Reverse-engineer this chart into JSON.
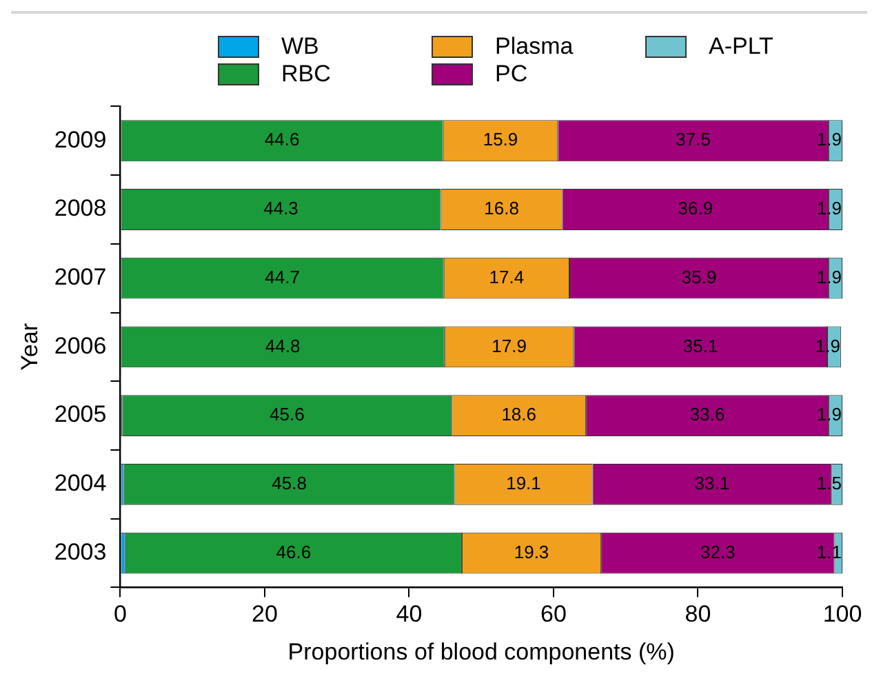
{
  "chart_data": {
    "type": "bar",
    "orientation": "horizontal",
    "stacked": true,
    "xlabel": "Proportions of blood components (%)",
    "ylabel": "Year",
    "categories": [
      "2009",
      "2008",
      "2007",
      "2006",
      "2005",
      "2004",
      "2003"
    ],
    "series": [
      {
        "name": "WB",
        "color": "#00a6e6",
        "values": [
          0.1,
          0.1,
          0.1,
          0.1,
          0.3,
          0.5,
          0.7
        ],
        "value_labels": [
          null,
          null,
          null,
          null,
          null,
          null,
          null
        ]
      },
      {
        "name": "RBC",
        "color": "#1a9a3a",
        "values": [
          44.6,
          44.3,
          44.7,
          44.8,
          45.6,
          45.8,
          46.6
        ],
        "value_labels": [
          "44.6",
          "44.3",
          "44.7",
          "44.8",
          "45.6",
          "45.8",
          "46.6"
        ]
      },
      {
        "name": "Plasma",
        "color": "#f0a01e",
        "values": [
          15.9,
          16.8,
          17.4,
          17.9,
          18.6,
          19.1,
          19.3
        ],
        "value_labels": [
          "15.9",
          "16.8",
          "17.4",
          "17.9",
          "18.6",
          "19.1",
          "19.3"
        ]
      },
      {
        "name": "PC",
        "color": "#a0007a",
        "values": [
          37.5,
          36.9,
          35.9,
          35.1,
          33.6,
          33.1,
          32.3
        ],
        "value_labels": [
          "37.5",
          "36.9",
          "35.9",
          "35.1",
          "33.6",
          "33.1",
          "32.3"
        ]
      },
      {
        "name": "A-PLT",
        "color": "#70c4d0",
        "values": [
          1.9,
          1.9,
          1.9,
          1.9,
          1.9,
          1.5,
          1.1
        ],
        "value_labels": [
          "1.9",
          "1.9",
          "1.9",
          "1.9",
          "1.9",
          "1.5",
          "1.1"
        ]
      }
    ],
    "xlim": [
      0,
      100
    ],
    "xticks": [
      0,
      20,
      40,
      60,
      80,
      100
    ],
    "grid": false,
    "legend": "top"
  }
}
